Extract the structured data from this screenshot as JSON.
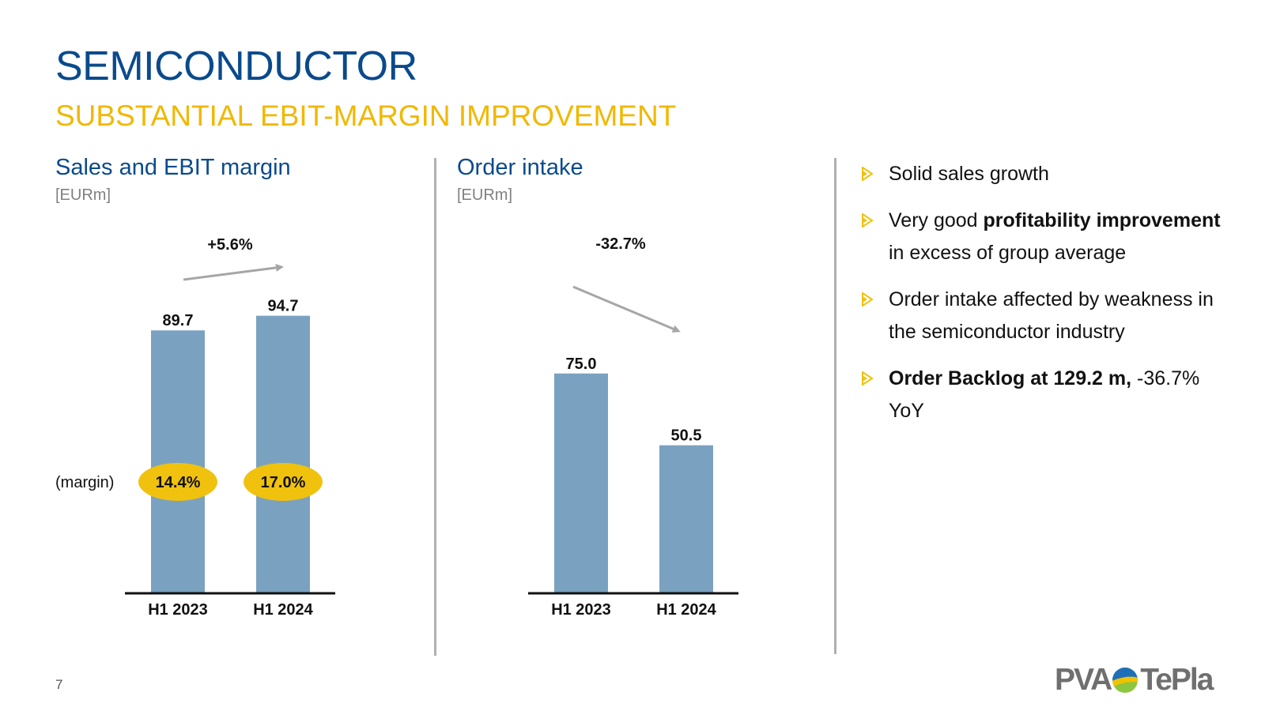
{
  "header": {
    "title": "SEMICONDUCTOR",
    "subtitle": "SUBSTANTIAL EBIT-MARGIN IMPROVEMENT"
  },
  "panels": {
    "sales": {
      "title": "Sales and EBIT margin",
      "unit": "[EURm]"
    },
    "orders": {
      "title": "Order intake",
      "unit": "[EURm]"
    }
  },
  "chart_data": [
    {
      "type": "bar",
      "title": "Sales and EBIT margin",
      "ylabel": "[EURm]",
      "categories": [
        "H1 2023",
        "H1 2024"
      ],
      "values": [
        89.7,
        94.7
      ],
      "value_labels": [
        "89.7",
        "94.7"
      ],
      "ylim": [
        0,
        100
      ],
      "trend_label": "+5.6%",
      "trend_direction": "up",
      "margin_label": "(margin)",
      "margins": [
        "14.4%",
        "17.0%"
      ],
      "bar_color": "#7aa2c0",
      "badge_color": "#f0c20e"
    },
    {
      "type": "bar",
      "title": "Order intake",
      "ylabel": "[EURm]",
      "categories": [
        "H1 2023",
        "H1 2024"
      ],
      "values": [
        75.0,
        50.5
      ],
      "value_labels": [
        "75.0",
        "50.5"
      ],
      "ylim": [
        0,
        100
      ],
      "trend_label": "-32.7%",
      "trend_direction": "down",
      "bar_color": "#7aa2c0"
    }
  ],
  "bullets": [
    {
      "parts": [
        {
          "text": "Solid sales growth",
          "bold": false
        }
      ]
    },
    {
      "parts": [
        {
          "text": "Very good ",
          "bold": false
        },
        {
          "text": "profitability improvement",
          "bold": true
        },
        {
          "text": " in excess of group average",
          "bold": false
        }
      ]
    },
    {
      "parts": [
        {
          "text": "Order intake affected by weakness in the semiconductor industry",
          "bold": false
        }
      ]
    },
    {
      "parts": [
        {
          "text": "Order Backlog at 129.2 m,",
          "bold": true
        },
        {
          "text": " -36.7% YoY",
          "bold": false
        }
      ]
    }
  ],
  "footer": {
    "page_number": "7",
    "logo_left": "PVA",
    "logo_right": "TePla"
  },
  "colors": {
    "title": "#0a4a8c",
    "subtitle": "#f0b800",
    "bar": "#7aa2c0",
    "badge": "#f0c20e",
    "arrow": "#a6a6a6",
    "bullet": "#f0c20e"
  }
}
